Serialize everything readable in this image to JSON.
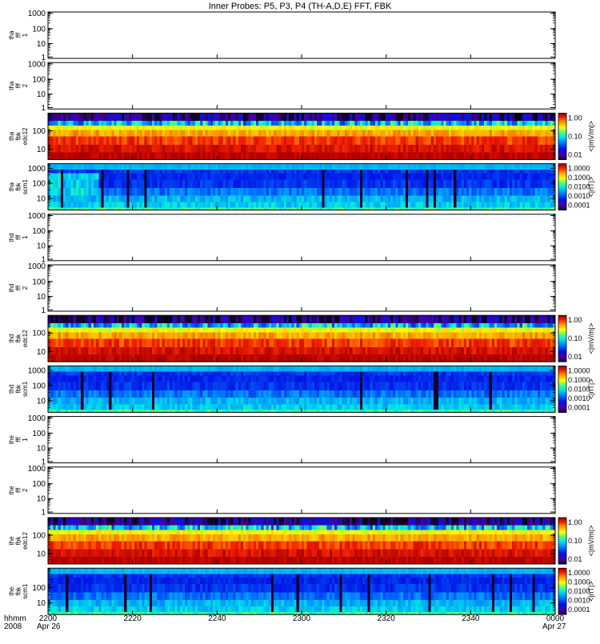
{
  "chart_data": {
    "type": "heatmap",
    "title": "Inner Probes: P5, P3, P4 (TH-A,D,E) FFT, FBK",
    "y_scale": "log",
    "x_ticks": [
      "2200",
      "2220",
      "2240",
      "2300",
      "2320",
      "2340",
      "0000"
    ],
    "x_axis_label_line1": "hhmm",
    "x_axis_label_line2": "2008",
    "date_start": "Apr 26",
    "date_end": "Apr 27",
    "panels": [
      {
        "label": [
          "tha",
          "fff",
          "1"
        ],
        "kind": "empty",
        "yticks": [
          "1000",
          "100",
          "10",
          "1"
        ],
        "ylim": [
          1,
          1000
        ]
      },
      {
        "label": [
          "tha",
          "fff",
          "2"
        ],
        "kind": "empty",
        "yticks": [
          "1000",
          "100",
          "10",
          "1"
        ],
        "ylim": [
          1,
          1000
        ]
      },
      {
        "label": [
          "tha",
          "fbk",
          "edc12"
        ],
        "kind": "edc",
        "yticks": [
          "100",
          "10"
        ],
        "ylim": [
          2,
          1000
        ],
        "colorbar_ticks": [
          "1.00",
          "0.10",
          "0.01"
        ],
        "colorbar_label": "<|mV/m|>",
        "colorbar_range": [
          0.003,
          1.5
        ]
      },
      {
        "label": [
          "tha",
          "fbk",
          "scm1"
        ],
        "kind": "scm",
        "yticks": [
          "1000",
          "100",
          "10"
        ],
        "ylim": [
          2,
          1500
        ],
        "colorbar_ticks": [
          "1.0000",
          "0.1000",
          "0.0100",
          "0.0010",
          "0.0001"
        ],
        "colorbar_label": "<|nT|>",
        "colorbar_range": [
          0.0001,
          1.0
        ]
      },
      {
        "label": [
          "thd",
          "fff",
          "1"
        ],
        "kind": "empty",
        "yticks": [
          "1000",
          "100",
          "10",
          "1"
        ],
        "ylim": [
          1,
          1000
        ]
      },
      {
        "label": [
          "thd",
          "fff",
          "2"
        ],
        "kind": "empty",
        "yticks": [
          "1000",
          "100",
          "10",
          "1"
        ],
        "ylim": [
          1,
          1000
        ]
      },
      {
        "label": [
          "thd",
          "fbk",
          "edc12"
        ],
        "kind": "edc",
        "yticks": [
          "100",
          "10"
        ],
        "ylim": [
          2,
          1000
        ],
        "colorbar_ticks": [
          "1.00",
          "0.10",
          "0.01"
        ],
        "colorbar_label": "<|mV/m|>",
        "colorbar_range": [
          0.003,
          1.5
        ]
      },
      {
        "label": [
          "thd",
          "fbk",
          "scm1"
        ],
        "kind": "scm",
        "yticks": [
          "1000",
          "100",
          "10"
        ],
        "ylim": [
          2,
          1500
        ],
        "colorbar_ticks": [
          "1.0000",
          "0.1000",
          "0.0100",
          "0.0010",
          "0.0001"
        ],
        "colorbar_label": "<|nT|>",
        "colorbar_range": [
          0.0001,
          1.0
        ]
      },
      {
        "label": [
          "the",
          "fff",
          "1"
        ],
        "kind": "empty",
        "yticks": [
          "1000",
          "100",
          "10",
          "1"
        ],
        "ylim": [
          1,
          1000
        ]
      },
      {
        "label": [
          "the",
          "fff",
          "2"
        ],
        "kind": "empty",
        "yticks": [
          "1000",
          "100",
          "10",
          "1"
        ],
        "ylim": [
          1,
          1000
        ]
      },
      {
        "label": [
          "the",
          "fbk",
          "edc12"
        ],
        "kind": "edc",
        "yticks": [
          "100",
          "10"
        ],
        "ylim": [
          2,
          1000
        ],
        "colorbar_ticks": [
          "1.00",
          "0.10",
          "0.01"
        ],
        "colorbar_label": "<|mV/m|>",
        "colorbar_range": [
          0.003,
          1.5
        ]
      },
      {
        "label": [
          "the",
          "fbk",
          "scm1"
        ],
        "kind": "scm",
        "yticks": [
          "100",
          "10"
        ],
        "ylim": [
          2,
          1500
        ],
        "colorbar_ticks": [
          "1.0000",
          "0.1000",
          "0.0100",
          "0.0010",
          "0.0001"
        ],
        "colorbar_label": "<|nT|>",
        "colorbar_range": [
          0.0001,
          1.0
        ]
      }
    ]
  }
}
